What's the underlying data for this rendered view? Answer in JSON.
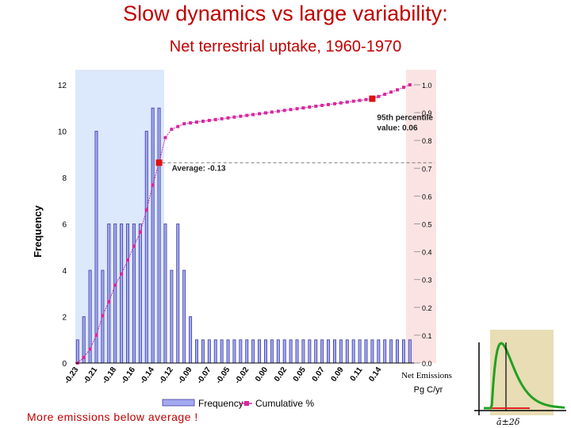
{
  "slide": {
    "title": "Slow dynamics vs large variability:",
    "subtitle": "Net terrestrial uptake, 1960-1970",
    "note": "More emissions below average !"
  },
  "colors": {
    "title": "#c00000",
    "bar_fill": "#a3a9f0",
    "bar_stroke": "#3c3ca0",
    "cumulative": "#d6289e",
    "marker": "#e01010",
    "left_shade": "#dce8fb",
    "right_shade": "#fbe3e3",
    "inset_bg": "#e8ddb5",
    "inset_curve": "#22a022",
    "inset_line": "#e02020"
  },
  "chart_data": {
    "type": "bar",
    "title": "",
    "xlabel": "Net Emissions",
    "xunit": "Pg C/yr",
    "ylabel": "Frequency",
    "ylim": [
      0,
      12
    ],
    "y_ticks": [
      "0",
      "2",
      "4",
      "6",
      "8",
      "10",
      "12"
    ],
    "y2lim": [
      0,
      1.0
    ],
    "y2_ticks": [
      "0.0",
      "0.1",
      "0.2",
      "0.3",
      "0.4",
      "0.5",
      "0.6",
      "0.7",
      "0.8",
      "0.9",
      "1.0"
    ],
    "x_tick_labels": [
      "-0.23",
      "-0.21",
      "-0.18",
      "-0.16",
      "-0.14",
      "-0.12",
      "-0.09",
      "-0.07",
      "-0.05",
      "-0.02",
      "0.00",
      "0.02",
      "0.05",
      "0.07",
      "0.09",
      "0.11",
      "0.14"
    ],
    "frequency": [
      1,
      2,
      4,
      10,
      4,
      6,
      6,
      6,
      6,
      6,
      6,
      10,
      11,
      11,
      6,
      4,
      6,
      4,
      2,
      1,
      1,
      1,
      1,
      1,
      1,
      1,
      1,
      1,
      1,
      1,
      1,
      1,
      1,
      1,
      1,
      1,
      1,
      1,
      1,
      1,
      1,
      1,
      1,
      1,
      1,
      1,
      1,
      1,
      1,
      1,
      1,
      1,
      1,
      1
    ],
    "cumulative_pct": [
      0.0,
      0.02,
      0.05,
      0.1,
      0.17,
      0.22,
      0.28,
      0.32,
      0.37,
      0.42,
      0.47,
      0.55,
      0.64,
      0.72,
      0.81,
      0.84,
      0.85,
      0.86,
      0.863,
      0.866,
      0.869,
      0.872,
      0.875,
      0.878,
      0.881,
      0.884,
      0.887,
      0.89,
      0.893,
      0.896,
      0.899,
      0.902,
      0.905,
      0.908,
      0.911,
      0.914,
      0.917,
      0.92,
      0.923,
      0.926,
      0.929,
      0.932,
      0.935,
      0.938,
      0.941,
      0.944,
      0.947,
      0.95,
      0.958,
      0.966,
      0.974,
      0.982,
      0.991,
      1.0
    ],
    "series": [
      {
        "name": "Frequency",
        "kind": "bar"
      },
      {
        "name": "Cumulative %",
        "kind": "line"
      }
    ],
    "annotations": [
      {
        "text": "Average: -0.13",
        "cumulative": 0.72
      },
      {
        "text": "95th percentile",
        "text2": "value: 0.06",
        "cumulative": 0.95
      }
    ],
    "legend": "bottom",
    "grid": false
  }
}
